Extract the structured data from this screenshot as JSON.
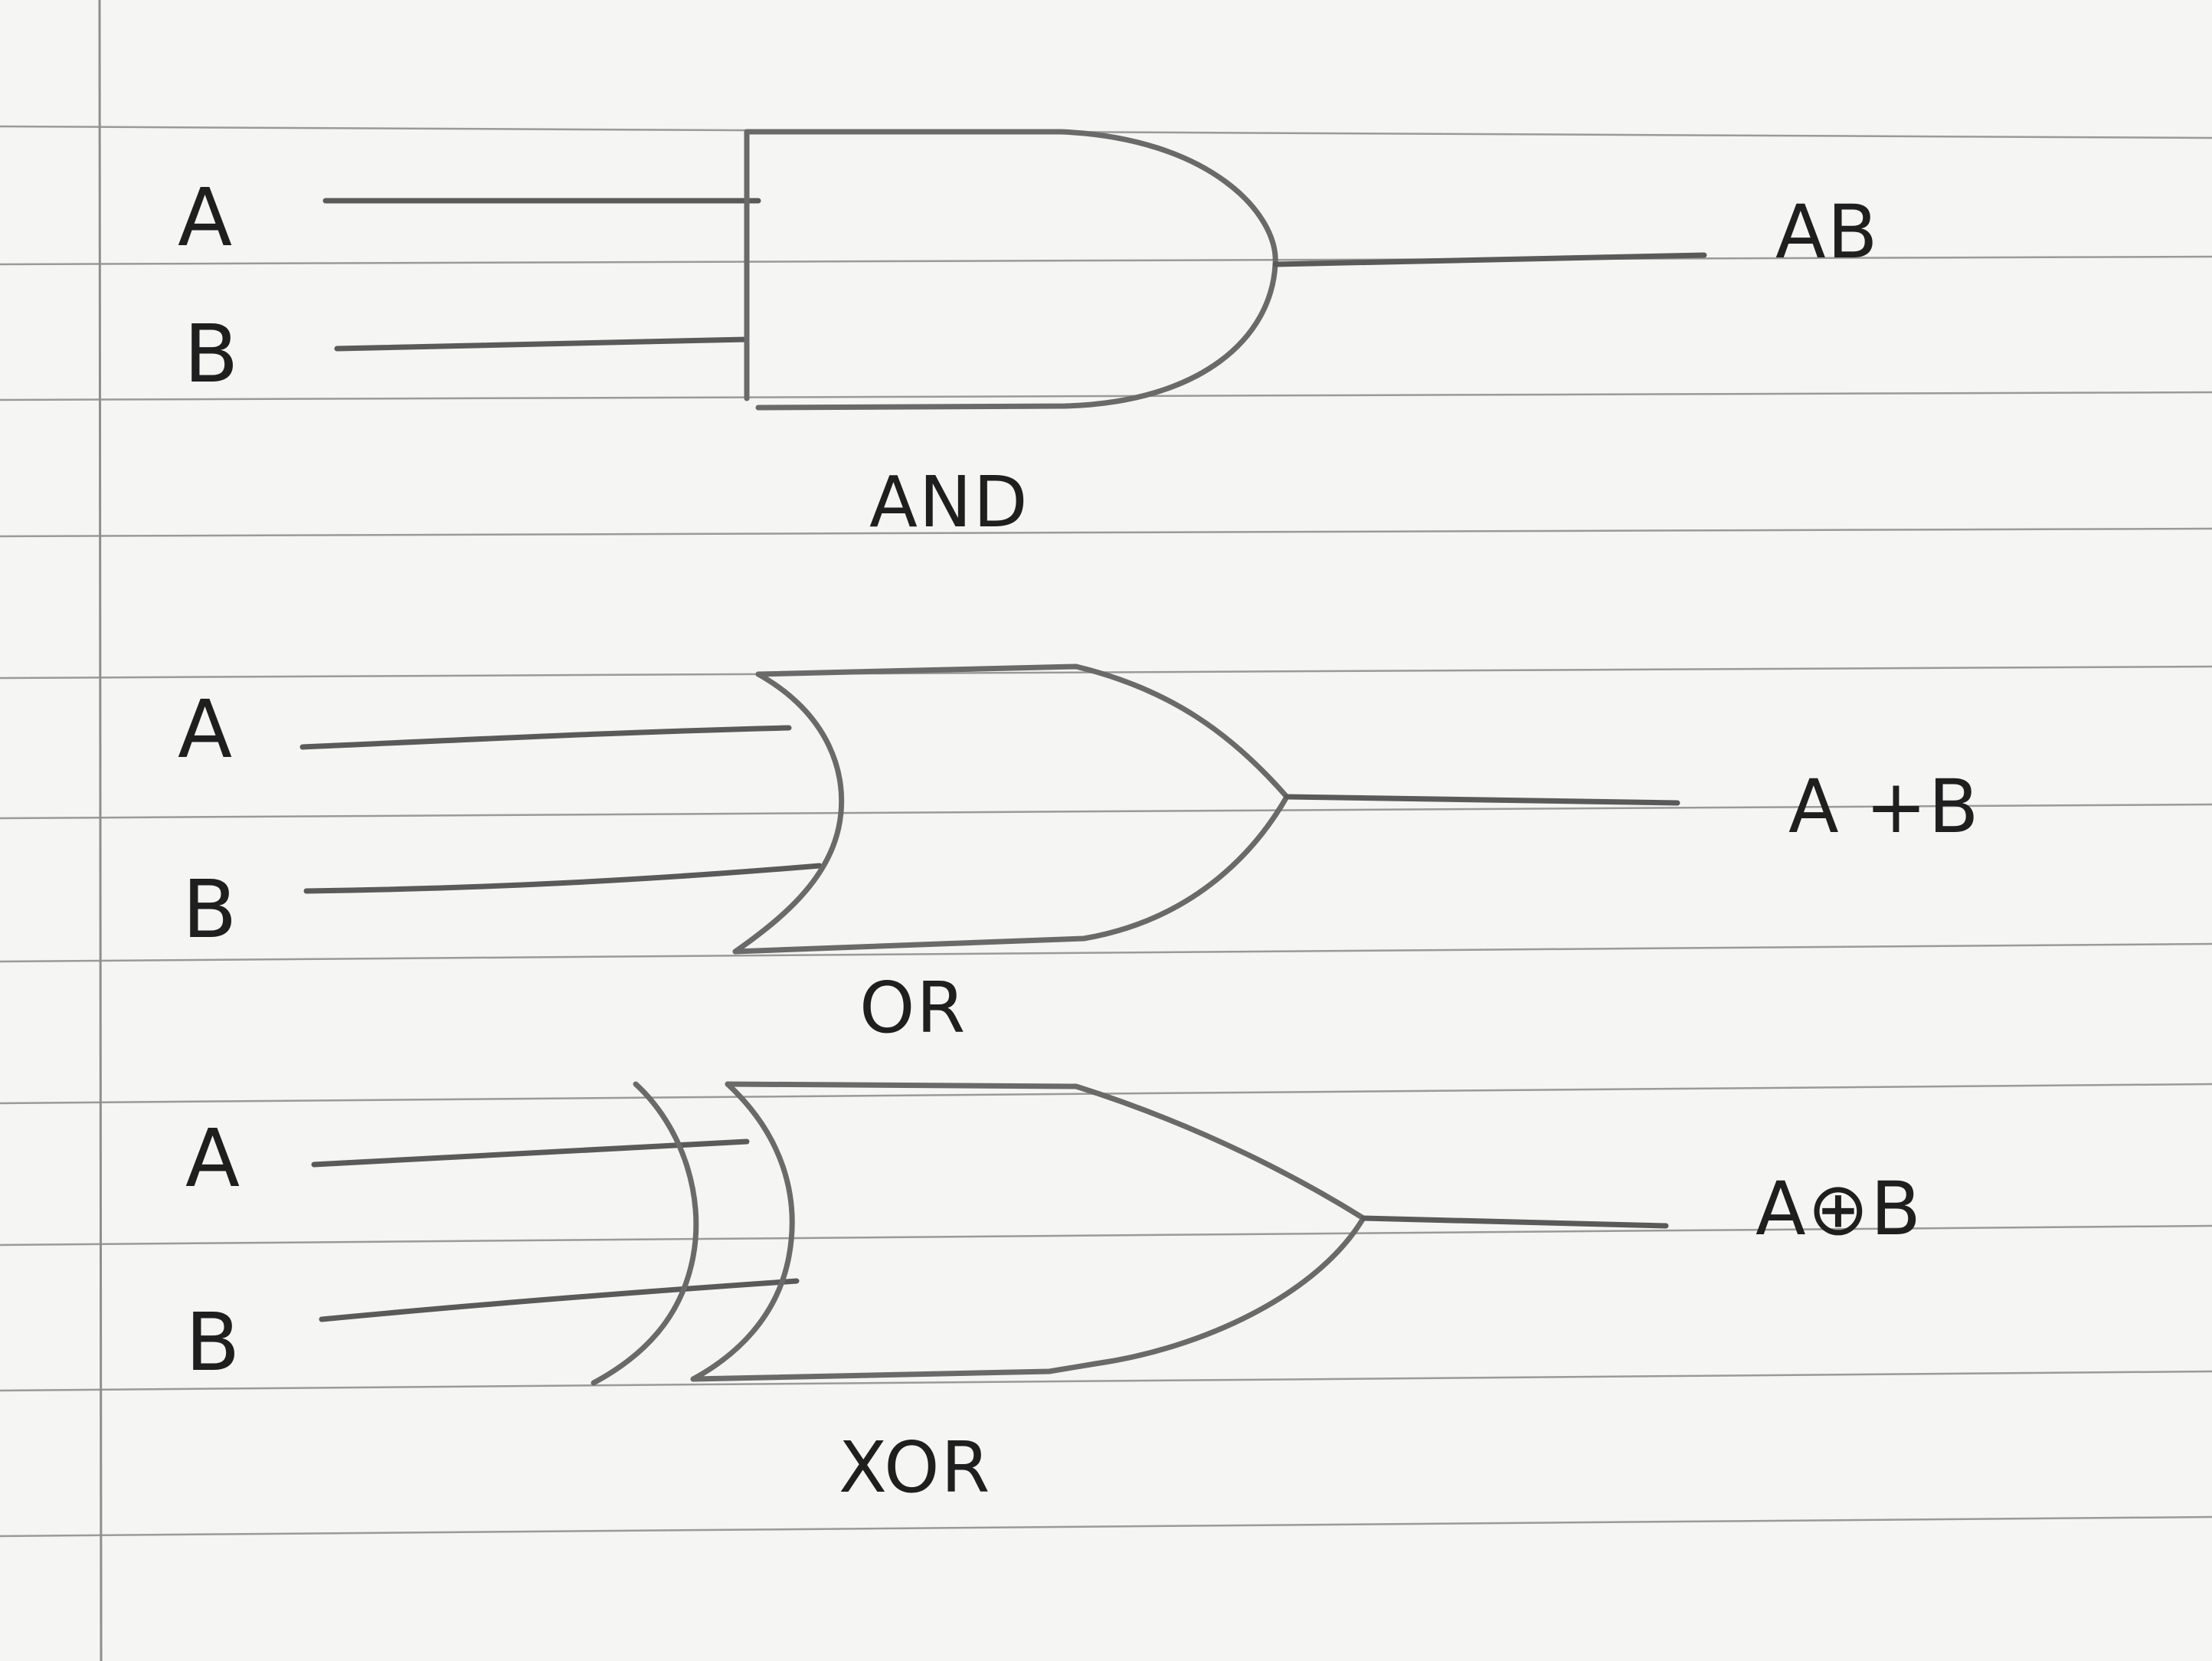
{
  "gates": [
    {
      "type": "and",
      "inputs": [
        "A",
        "B"
      ],
      "output": "AB",
      "name": "AND"
    },
    {
      "type": "or",
      "inputs": [
        "A",
        "B"
      ],
      "output": "A +B",
      "name": "OR"
    },
    {
      "type": "xor",
      "inputs": [
        "A",
        "B"
      ],
      "output": "A⊕B",
      "name": "XOR"
    }
  ],
  "colors": {
    "paper": "#f5f5f3",
    "rule_lines": "#9a9a9a",
    "pencil": "#5a5a5a",
    "ink": "#1f1f1f"
  }
}
